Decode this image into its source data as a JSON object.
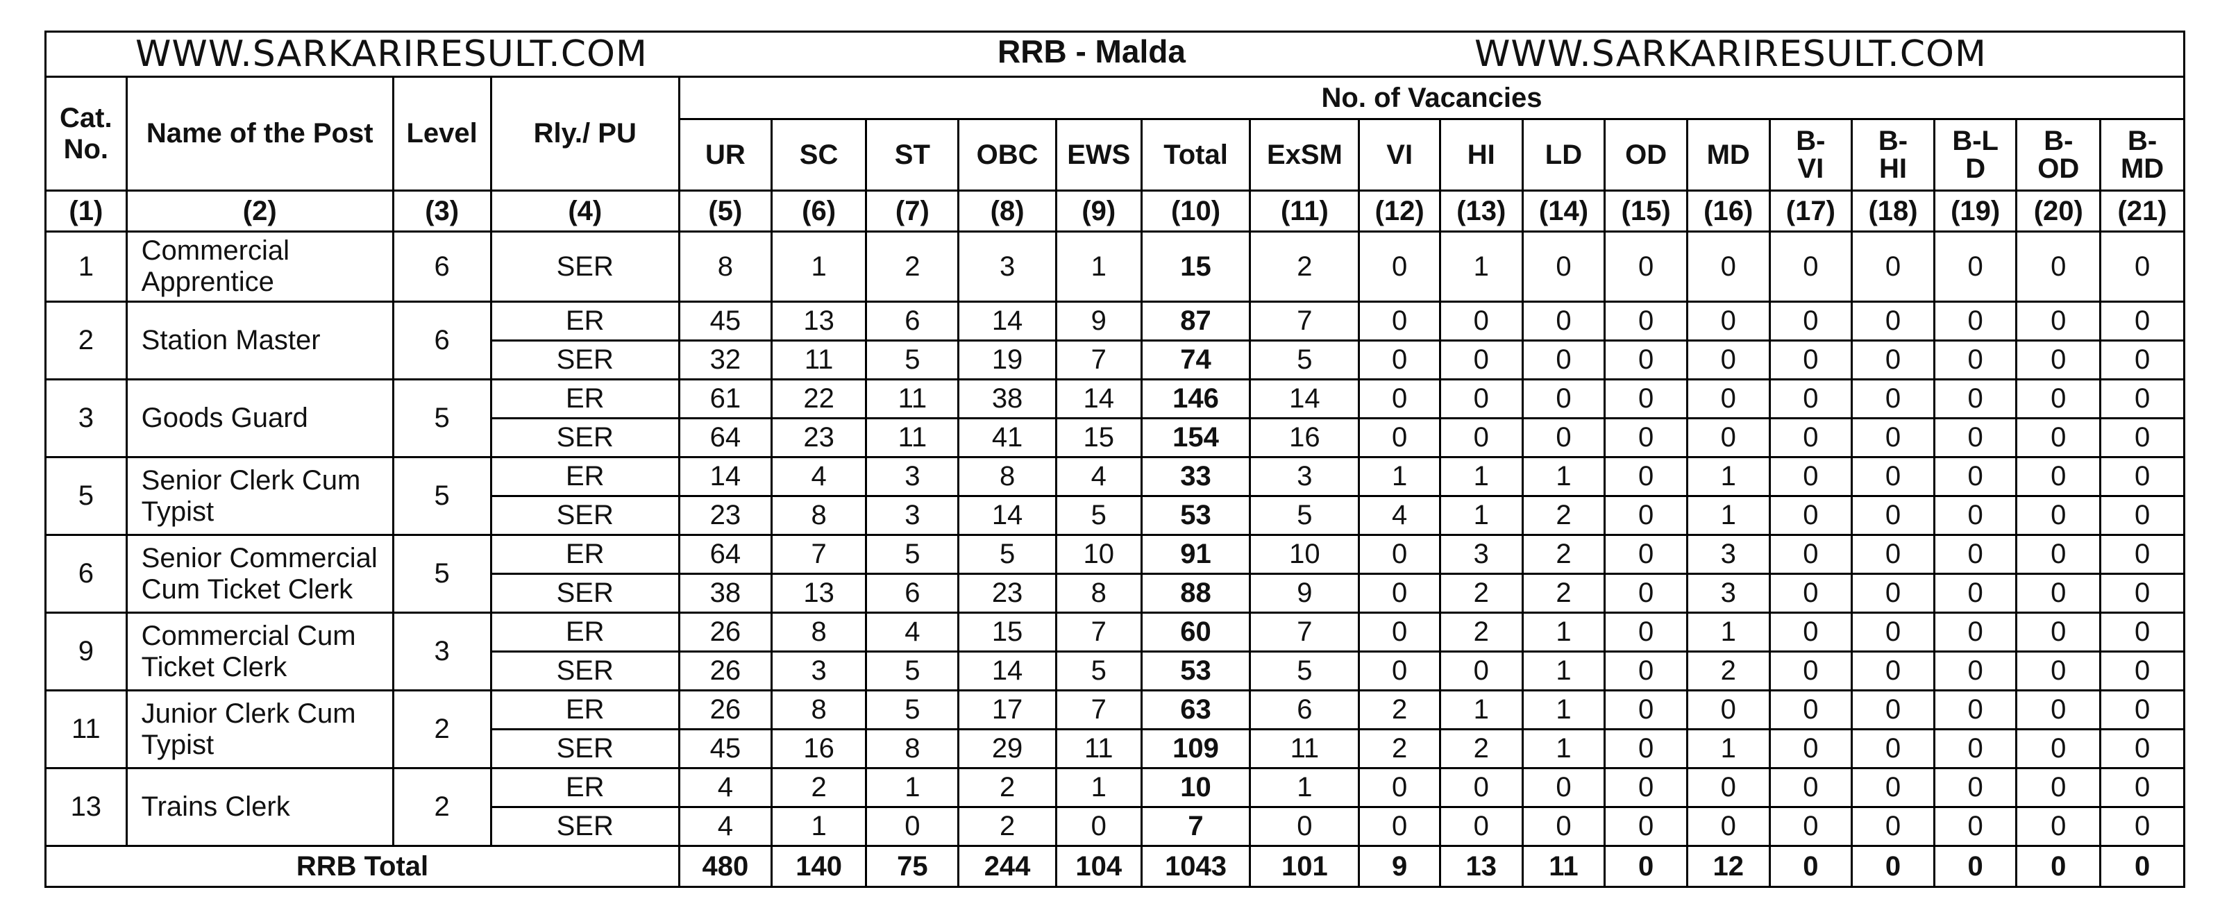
{
  "header": {
    "site_left": "WWW.SARKARIRESULT.COM",
    "title": "RRB - Malda",
    "site_right": "WWW.SARKARIRESULT.COM"
  },
  "columns": {
    "cat_no": "Cat. No.",
    "name": "Name of the Post",
    "level": "Level",
    "rly_pu": "Rly./ PU",
    "vacancies": "No. of Vacancies",
    "sub": [
      "UR",
      "SC",
      "ST",
      "OBC",
      "EWS",
      "Total",
      "ExSM",
      "VI",
      "HI",
      "LD",
      "OD",
      "MD",
      "B-VI",
      "B-HI",
      "B-LD",
      "B-OD",
      "B-MD"
    ],
    "numbers": [
      "(1)",
      "(2)",
      "(3)",
      "(4)",
      "(5)",
      "(6)",
      "(7)",
      "(8)",
      "(9)",
      "(10)",
      "(11)",
      "(12)",
      "(13)",
      "(14)",
      "(15)",
      "(16)",
      "(17)",
      "(18)",
      "(19)",
      "(20)",
      "(21)"
    ]
  },
  "posts": [
    {
      "cat": "1",
      "name": "Commercial Apprentice",
      "level": "6",
      "rows": [
        {
          "rly": "SER",
          "v": [
            "8",
            "1",
            "2",
            "3",
            "1",
            "15",
            "2",
            "0",
            "1",
            "0",
            "0",
            "0",
            "0",
            "0",
            "0",
            "0",
            "0"
          ]
        }
      ]
    },
    {
      "cat": "2",
      "name": "Station Master",
      "level": "6",
      "rows": [
        {
          "rly": "ER",
          "v": [
            "45",
            "13",
            "6",
            "14",
            "9",
            "87",
            "7",
            "0",
            "0",
            "0",
            "0",
            "0",
            "0",
            "0",
            "0",
            "0",
            "0"
          ]
        },
        {
          "rly": "SER",
          "v": [
            "32",
            "11",
            "5",
            "19",
            "7",
            "74",
            "5",
            "0",
            "0",
            "0",
            "0",
            "0",
            "0",
            "0",
            "0",
            "0",
            "0"
          ]
        }
      ]
    },
    {
      "cat": "3",
      "name": "Goods Guard",
      "level": "5",
      "rows": [
        {
          "rly": "ER",
          "v": [
            "61",
            "22",
            "11",
            "38",
            "14",
            "146",
            "14",
            "0",
            "0",
            "0",
            "0",
            "0",
            "0",
            "0",
            "0",
            "0",
            "0"
          ]
        },
        {
          "rly": "SER",
          "v": [
            "64",
            "23",
            "11",
            "41",
            "15",
            "154",
            "16",
            "0",
            "0",
            "0",
            "0",
            "0",
            "0",
            "0",
            "0",
            "0",
            "0"
          ]
        }
      ]
    },
    {
      "cat": "5",
      "name": "Senior Clerk Cum Typist",
      "level": "5",
      "rows": [
        {
          "rly": "ER",
          "v": [
            "14",
            "4",
            "3",
            "8",
            "4",
            "33",
            "3",
            "1",
            "1",
            "1",
            "0",
            "1",
            "0",
            "0",
            "0",
            "0",
            "0"
          ]
        },
        {
          "rly": "SER",
          "v": [
            "23",
            "8",
            "3",
            "14",
            "5",
            "53",
            "5",
            "4",
            "1",
            "2",
            "0",
            "1",
            "0",
            "0",
            "0",
            "0",
            "0"
          ]
        }
      ]
    },
    {
      "cat": "6",
      "name": "Senior Commercial Cum Ticket Clerk",
      "level": "5",
      "rows": [
        {
          "rly": "ER",
          "v": [
            "64",
            "7",
            "5",
            "5",
            "10",
            "91",
            "10",
            "0",
            "3",
            "2",
            "0",
            "3",
            "0",
            "0",
            "0",
            "0",
            "0"
          ]
        },
        {
          "rly": "SER",
          "v": [
            "38",
            "13",
            "6",
            "23",
            "8",
            "88",
            "9",
            "0",
            "2",
            "2",
            "0",
            "3",
            "0",
            "0",
            "0",
            "0",
            "0"
          ]
        }
      ]
    },
    {
      "cat": "9",
      "name": "Commercial Cum Ticket Clerk",
      "level": "3",
      "rows": [
        {
          "rly": "ER",
          "v": [
            "26",
            "8",
            "4",
            "15",
            "7",
            "60",
            "7",
            "0",
            "2",
            "1",
            "0",
            "1",
            "0",
            "0",
            "0",
            "0",
            "0"
          ]
        },
        {
          "rly": "SER",
          "v": [
            "26",
            "3",
            "5",
            "14",
            "5",
            "53",
            "5",
            "0",
            "0",
            "1",
            "0",
            "2",
            "0",
            "0",
            "0",
            "0",
            "0"
          ]
        }
      ]
    },
    {
      "cat": "11",
      "name": "Junior Clerk Cum Typist",
      "level": "2",
      "rows": [
        {
          "rly": "ER",
          "v": [
            "26",
            "8",
            "5",
            "17",
            "7",
            "63",
            "6",
            "2",
            "1",
            "1",
            "0",
            "0",
            "0",
            "0",
            "0",
            "0",
            "0"
          ]
        },
        {
          "rly": "SER",
          "v": [
            "45",
            "16",
            "8",
            "29",
            "11",
            "109",
            "11",
            "2",
            "2",
            "1",
            "0",
            "1",
            "0",
            "0",
            "0",
            "0",
            "0"
          ]
        }
      ]
    },
    {
      "cat": "13",
      "name": "Trains Clerk",
      "level": "2",
      "rows": [
        {
          "rly": "ER",
          "v": [
            "4",
            "2",
            "1",
            "2",
            "1",
            "10",
            "1",
            "0",
            "0",
            "0",
            "0",
            "0",
            "0",
            "0",
            "0",
            "0",
            "0"
          ]
        },
        {
          "rly": "SER",
          "v": [
            "4",
            "1",
            "0",
            "2",
            "0",
            "7",
            "0",
            "0",
            "0",
            "0",
            "0",
            "0",
            "0",
            "0",
            "0",
            "0",
            "0"
          ]
        }
      ]
    }
  ],
  "total": {
    "label": "RRB Total",
    "v": [
      "480",
      "140",
      "75",
      "244",
      "104",
      "1043",
      "101",
      "9",
      "13",
      "11",
      "0",
      "12",
      "0",
      "0",
      "0",
      "0",
      "0"
    ]
  }
}
